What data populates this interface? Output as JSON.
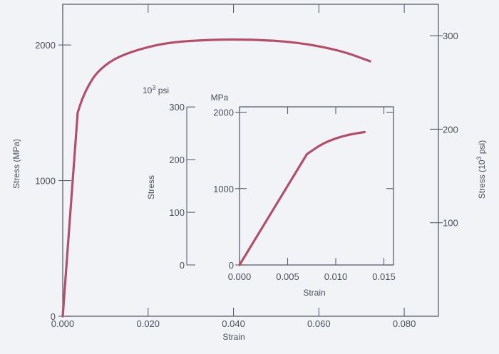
{
  "chart_data": [
    {
      "id": "main",
      "type": "line",
      "xlabel": "Strain",
      "ylabel": "Stress (MPa)",
      "ylabel_right": "Stress (10",
      "ylabel_right_sup": "3",
      "ylabel_right_tail": " psi)",
      "xlim": [
        0,
        0.088
      ],
      "ylim": [
        0,
        2300
      ],
      "x_ticks": [
        "0.000",
        "0.020",
        "0.040",
        "0.060",
        "0.080"
      ],
      "x_tick_values": [
        0,
        0.02,
        0.04,
        0.06,
        0.08
      ],
      "y_ticks": [
        "0",
        "1000",
        "2000"
      ],
      "y_tick_values": [
        0,
        1000,
        2000
      ],
      "y2_ticks": [
        "100",
        "200",
        "300"
      ],
      "y2_tick_values": [
        100,
        200,
        300
      ],
      "y2_to_y_factor": 6.895,
      "grid": false,
      "legend": "none",
      "series": [
        {
          "color": "#b0506a",
          "x": [
            0.0,
            0.0035,
            0.0045,
            0.006,
            0.008,
            0.012,
            0.018,
            0.025,
            0.035,
            0.045,
            0.055,
            0.065,
            0.072
          ],
          "y": [
            0,
            1500,
            1600,
            1700,
            1800,
            1900,
            1970,
            2020,
            2040,
            2040,
            2020,
            1960,
            1880
          ]
        }
      ]
    },
    {
      "id": "inset",
      "type": "line",
      "xlabel": "Strain",
      "ylabel": "Stress",
      "left_unit": "10",
      "left_unit_sup": "3",
      "left_unit_tail": " psi",
      "right_unit": "MPa",
      "xlim": [
        0,
        0.016
      ],
      "ylim": [
        0,
        2070
      ],
      "x_ticks": [
        "0.000",
        "0.005",
        "0.010",
        "0.015"
      ],
      "x_tick_values": [
        0,
        0.005,
        0.01,
        0.015
      ],
      "y_ticks": [
        "0",
        "1000",
        "2000"
      ],
      "y_tick_values": [
        0,
        1000,
        2000
      ],
      "y_left_ticks": [
        "0",
        "100",
        "200",
        "300"
      ],
      "y_left_tick_values": [
        0,
        100,
        200,
        300
      ],
      "grid": false,
      "legend": "none",
      "series": [
        {
          "color": "#b0506a",
          "x": [
            0.0,
            0.007,
            0.0085,
            0.01,
            0.0115,
            0.013
          ],
          "y": [
            0,
            1450,
            1580,
            1660,
            1710,
            1740
          ]
        }
      ]
    }
  ]
}
